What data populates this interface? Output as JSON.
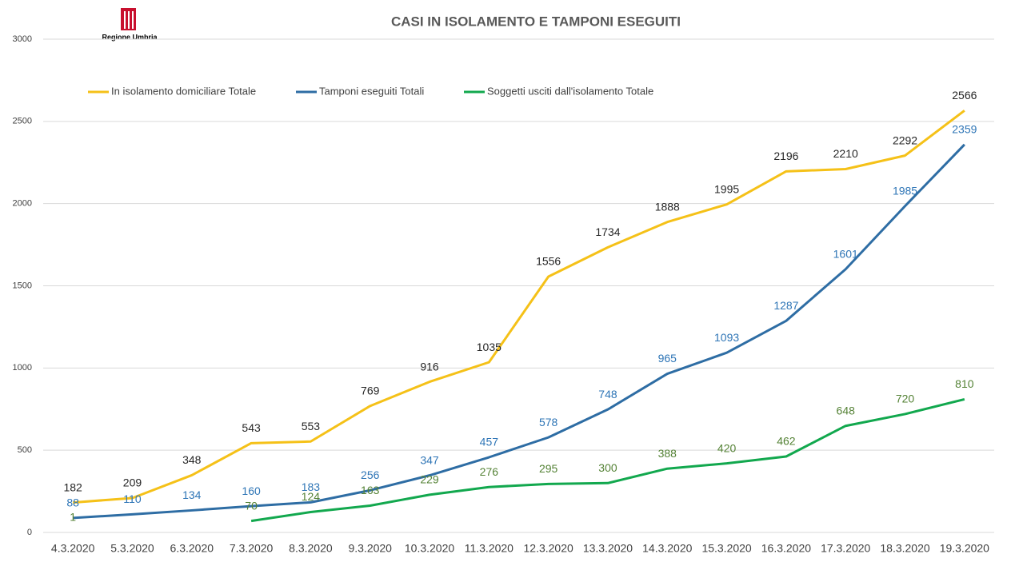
{
  "logo": {
    "text": "Regione Umbria"
  },
  "chart_data": {
    "type": "line",
    "title": "CASI IN ISOLAMENTO E TAMPONI ESEGUITI",
    "categories": [
      "4.3.2020",
      "5.3.2020",
      "6.3.2020",
      "7.3.2020",
      "8.3.2020",
      "9.3.2020",
      "10.3.2020",
      "11.3.2020",
      "12.3.2020",
      "13.3.2020",
      "14.3.2020",
      "15.3.2020",
      "16.3.2020",
      "17.3.2020",
      "18.3.2020",
      "19.3.2020"
    ],
    "series": [
      {
        "name": "In isolamento domiciliare Totale",
        "color": "#f5c118",
        "label_color": "#262626",
        "values": [
          182,
          209,
          348,
          543,
          553,
          769,
          916,
          1035,
          1556,
          1734,
          1888,
          1995,
          2196,
          2210,
          2292,
          2566
        ]
      },
      {
        "name": "Tamponi eseguiti Totali",
        "color": "#2e6da4",
        "label_color": "#2e75b6",
        "values": [
          88,
          110,
          134,
          160,
          183,
          256,
          347,
          457,
          578,
          748,
          965,
          1093,
          1287,
          1601,
          1985,
          2359
        ]
      },
      {
        "name": "Soggetti usciti dall'isolamento Totale",
        "color": "#12a84e",
        "label_color": "#548235",
        "values": [
          1,
          null,
          null,
          70,
          124,
          163,
          229,
          276,
          295,
          300,
          388,
          420,
          462,
          648,
          720,
          810
        ]
      }
    ],
    "ylim": [
      0,
      3000
    ],
    "yticks": [
      0,
      500,
      1000,
      1500,
      2000,
      2500,
      3000
    ],
    "grid": true,
    "legend": "top"
  }
}
